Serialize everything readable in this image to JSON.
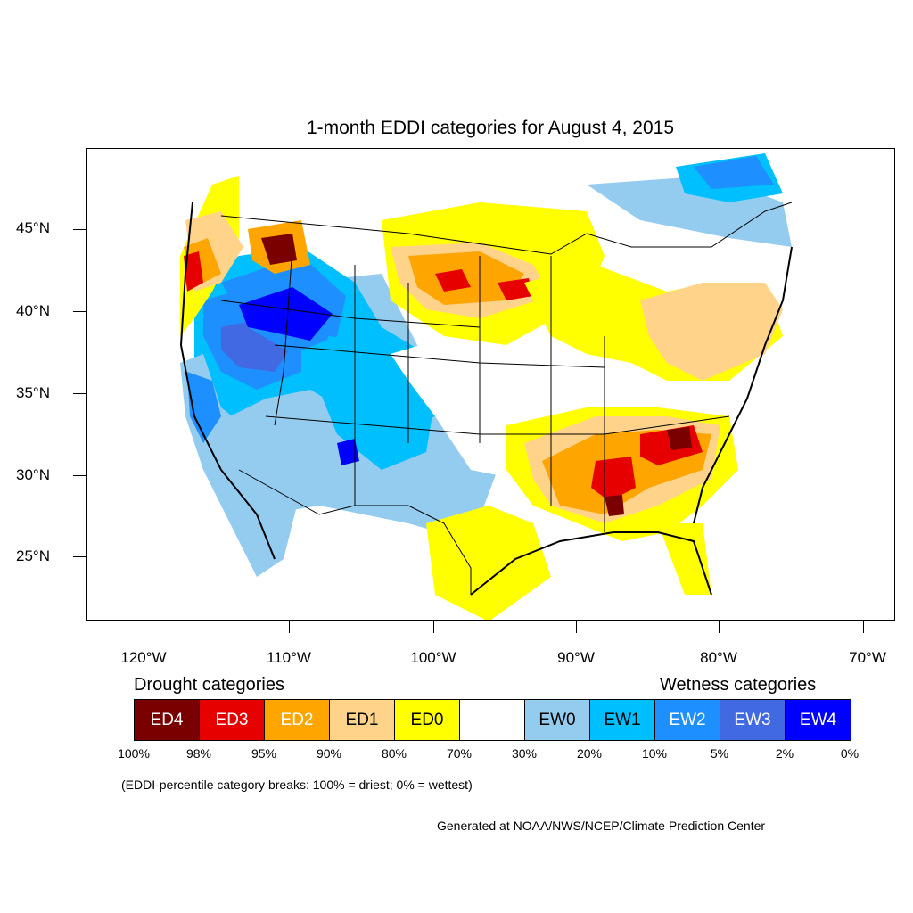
{
  "title": "1-month EDDI categories for August 4, 2015",
  "map": {
    "lat_labels": [
      "45°N",
      "40°N",
      "35°N",
      "30°N",
      "25°N"
    ],
    "lon_labels": [
      "120°W",
      "110°W",
      "100°W",
      "90°W",
      "80°W",
      "70°W"
    ],
    "colors": {
      "ED4": "#7a0000",
      "ED3": "#e60000",
      "ED2": "#ffa500",
      "ED1": "#ffd38a",
      "ED0": "#ffff00",
      "NEUTRAL": "#ffffff",
      "EW0": "#94ccf0",
      "EW1": "#00bfff",
      "EW2": "#1e8fff",
      "EW3": "#4169e1",
      "EW4": "#0000ff"
    }
  },
  "legend": {
    "drought_heading": "Drought categories",
    "wetness_heading": "Wetness categories",
    "categories": [
      {
        "label": "ED4",
        "color": "#7a0000",
        "text_color": "#ffffff"
      },
      {
        "label": "ED3",
        "color": "#e60000",
        "text_color": "#ffffff"
      },
      {
        "label": "ED2",
        "color": "#ffa500",
        "text_color": "#ffffff"
      },
      {
        "label": "ED1",
        "color": "#ffd38a",
        "text_color": "#000000"
      },
      {
        "label": "ED0",
        "color": "#ffff00",
        "text_color": "#000000"
      },
      {
        "label": "",
        "color": "#ffffff",
        "text_color": "#000000"
      },
      {
        "label": "EW0",
        "color": "#94ccf0",
        "text_color": "#000000"
      },
      {
        "label": "EW1",
        "color": "#00bfff",
        "text_color": "#000000"
      },
      {
        "label": "EW2",
        "color": "#1e8fff",
        "text_color": "#ffffff"
      },
      {
        "label": "EW3",
        "color": "#4169e1",
        "text_color": "#ffffff"
      },
      {
        "label": "EW4",
        "color": "#0000ff",
        "text_color": "#ffffff"
      }
    ],
    "breaks": [
      "100%",
      "98%",
      "95%",
      "90%",
      "80%",
      "70%",
      "30%",
      "20%",
      "10%",
      "5%",
      "2%",
      "0%"
    ]
  },
  "note": "(EDDI-percentile category breaks: 100% = driest; 0% = wettest)",
  "credit": "Generated at NOAA/NWS/NCEP/Climate Prediction Center"
}
